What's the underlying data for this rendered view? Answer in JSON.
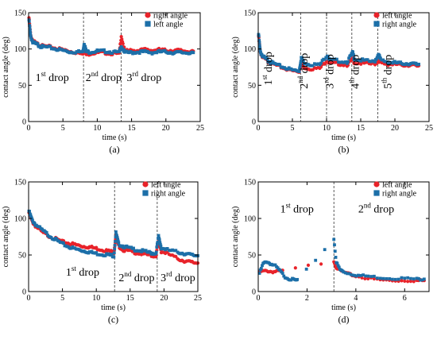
{
  "chart_data": [
    {
      "panel": "(a)",
      "type": "scatter",
      "xlabel": "time (s)",
      "ylabel": "contact angle (deg)",
      "xlim": [
        0,
        25
      ],
      "ylim": [
        0,
        150
      ],
      "xticks": [
        0,
        5,
        10,
        15,
        20,
        25
      ],
      "yticks": [
        0,
        50,
        100,
        150
      ],
      "legend_position": "top-right",
      "series": [
        {
          "name": "right angle",
          "color": "#e8232a",
          "x": [
            0.05,
            0.3,
            0.6,
            1,
            1.5,
            2,
            3,
            4,
            5,
            6,
            7,
            7.9,
            8.1,
            8.4,
            9,
            10,
            11,
            12,
            13.2,
            13.5,
            14,
            15,
            16,
            17,
            18,
            19,
            20,
            21,
            22,
            23,
            24
          ],
          "y": [
            143,
            118,
            112,
            108,
            106,
            104,
            103,
            101,
            99,
            97,
            95,
            93,
            102,
            92,
            94,
            95,
            95,
            94,
            93,
            118,
            97,
            98,
            98,
            99,
            98,
            99,
            98,
            98,
            98,
            97,
            97
          ]
        },
        {
          "name": "left angle",
          "color": "#1c6fa8",
          "x": [
            0.05,
            0.3,
            0.6,
            1,
            1.5,
            2,
            3,
            4,
            5,
            6,
            7,
            7.9,
            8.1,
            8.4,
            9,
            10,
            11,
            12,
            13.2,
            13.5,
            14,
            15,
            16,
            17,
            18,
            19,
            20,
            21,
            22,
            23,
            24
          ],
          "y": [
            140,
            117,
            110,
            107,
            105,
            103,
            102,
            100,
            98,
            96,
            96,
            96,
            108,
            96,
            96,
            97,
            97,
            96,
            95,
            104,
            95,
            95,
            96,
            96,
            95,
            96,
            96,
            95,
            95,
            95,
            95
          ]
        }
      ],
      "dividers": [
        8,
        13.5
      ],
      "annotations": [
        {
          "base": "1",
          "sup": "st",
          "rest": " drop",
          "x": 1,
          "y": 56
        },
        {
          "base": "2",
          "sup": "nd",
          "rest": " drop",
          "x": 8.3,
          "y": 56
        },
        {
          "base": "3",
          "sup": "rd",
          "rest": " drop",
          "x": 14.3,
          "y": 56
        }
      ],
      "label": "(a)"
    },
    {
      "panel": "(b)",
      "type": "scatter",
      "xlabel": "time (s)",
      "ylabel": "contact angle (deg)",
      "xlim": [
        0,
        25
      ],
      "ylim": [
        0,
        150
      ],
      "xticks": [
        0,
        5,
        10,
        15,
        20,
        25
      ],
      "yticks": [
        0,
        50,
        100,
        150
      ],
      "legend_position": "top-right",
      "series": [
        {
          "name": "left angle",
          "color": "#e8232a",
          "x": [
            0.05,
            0.3,
            0.6,
            1,
            1.5,
            2,
            3,
            4,
            5,
            6,
            6.3,
            6.6,
            7.5,
            9,
            10.1,
            10.4,
            11.5,
            13,
            13.8,
            14.1,
            15.5,
            17,
            17.6,
            17.9,
            19,
            20,
            21,
            22,
            23,
            23.5
          ],
          "y": [
            118,
            95,
            90,
            86,
            83,
            80,
            76,
            73,
            70,
            69,
            80,
            75,
            73,
            73,
            85,
            80,
            80,
            78,
            86,
            81,
            80,
            79,
            84,
            81,
            79,
            79,
            78,
            78,
            77,
            77
          ]
        },
        {
          "name": "right angle",
          "color": "#1c6fa8",
          "x": [
            0.05,
            0.3,
            0.6,
            1,
            1.5,
            2,
            3,
            4,
            5,
            6,
            6.3,
            6.6,
            7.5,
            9,
            10.1,
            10.4,
            11.5,
            13,
            13.8,
            14.1,
            15.5,
            17,
            17.6,
            17.9,
            19,
            20,
            21,
            22,
            23,
            23.5
          ],
          "y": [
            120,
            96,
            91,
            87,
            84,
            81,
            77,
            74,
            71,
            70,
            88,
            82,
            79,
            78,
            92,
            85,
            84,
            82,
            95,
            86,
            84,
            82,
            93,
            85,
            82,
            81,
            80,
            80,
            79,
            79
          ]
        }
      ],
      "dividers": [
        6.2,
        10,
        13.7,
        17.5
      ],
      "annotations": [
        {
          "base": "1",
          "sup": "st",
          "rest": " drop",
          "x": 2,
          "y": 50,
          "rotate": true
        },
        {
          "base": "2",
          "sup": "nd",
          "rest": " drop",
          "x": 7.2,
          "y": 45,
          "rotate": true
        },
        {
          "base": "3",
          "sup": "rd",
          "rest": " drop",
          "x": 11,
          "y": 45,
          "rotate": true
        },
        {
          "base": "4",
          "sup": "th",
          "rest": " drop",
          "x": 14.7,
          "y": 45,
          "rotate": true
        },
        {
          "base": "5",
          "sup": "th",
          "rest": " drop",
          "x": 19.5,
          "y": 45,
          "rotate": true
        }
      ],
      "label": "(b)"
    },
    {
      "panel": "(c)",
      "type": "scatter",
      "xlabel": "time (s)",
      "ylabel": "contact angle (deg)",
      "xlim": [
        0,
        25
      ],
      "ylim": [
        0,
        150
      ],
      "xticks": [
        0,
        5,
        10,
        15,
        20,
        25
      ],
      "yticks": [
        0,
        50,
        100,
        150
      ],
      "legend_position": "top-right",
      "series": [
        {
          "name": "left angle",
          "color": "#e8232a",
          "x": [
            0.05,
            0.5,
            1,
            2,
            3,
            4,
            5,
            6,
            7,
            8,
            9,
            10,
            11,
            12,
            12.6,
            12.9,
            13.3,
            14,
            15,
            16,
            17,
            18,
            18.8,
            19.2,
            19.6,
            20.5,
            22,
            23,
            24,
            25
          ],
          "y": [
            108,
            96,
            90,
            81,
            76,
            72,
            68,
            66,
            64,
            62,
            61,
            59,
            57,
            55,
            54,
            75,
            62,
            57,
            55,
            53,
            51,
            50,
            48,
            70,
            55,
            52,
            45,
            42,
            40,
            39
          ]
        },
        {
          "name": "right angle",
          "color": "#1c6fa8",
          "x": [
            0.05,
            0.5,
            1,
            2,
            3,
            4,
            5,
            6,
            7,
            8,
            9,
            10,
            11,
            12,
            12.6,
            12.9,
            13.3,
            14,
            15,
            16,
            17,
            18,
            18.8,
            19.2,
            19.6,
            20.5,
            22,
            23,
            24,
            25
          ],
          "y": [
            110,
            98,
            92,
            84,
            77,
            71,
            65,
            61,
            58,
            56,
            54,
            52,
            51,
            50,
            49,
            80,
            65,
            62,
            59,
            57,
            55,
            53,
            52,
            75,
            60,
            57,
            54,
            52,
            50,
            49
          ]
        }
      ],
      "dividers": [
        12.7,
        19
      ],
      "annotations": [
        {
          "base": "1",
          "sup": "st",
          "rest": " drop",
          "x": 5.5,
          "y": 22
        },
        {
          "base": "2",
          "sup": "nd",
          "rest": " drop",
          "x": 13.3,
          "y": 14
        },
        {
          "base": "3",
          "sup": "rd",
          "rest": " drop",
          "x": 19.5,
          "y": 14
        }
      ],
      "label": "(c)"
    },
    {
      "panel": "(d)",
      "type": "scatter",
      "xlabel": "time (s)",
      "ylabel": "contact angle (deg)",
      "xlim": [
        0,
        7
      ],
      "ylim": [
        0,
        150
      ],
      "xticks": [
        0,
        2,
        4,
        6
      ],
      "yticks": [
        0,
        50,
        100,
        150
      ],
      "legend_position": "top-right",
      "series": [
        {
          "name": "left angle",
          "color": "#e8232a",
          "x": [
            0.05,
            0.2,
            0.4,
            0.6,
            0.8,
            1.0,
            3.1,
            3.2,
            3.4,
            3.7,
            4.0,
            4.5,
            5.0,
            5.5,
            6.0,
            6.5,
            6.8
          ],
          "y": [
            27,
            28,
            28,
            27,
            28,
            28,
            42,
            33,
            28,
            24,
            21,
            18,
            16,
            15,
            15,
            15,
            15
          ]
        },
        {
          "name": "right angle",
          "color": "#1c6fa8",
          "x": [
            0.05,
            0.2,
            0.35,
            0.5,
            0.7,
            0.9,
            1.1,
            1.3,
            1.5,
            1.6,
            3.1,
            3.2,
            3.35,
            3.5,
            3.8,
            4.1,
            4.5,
            5.0,
            5.5,
            6.0,
            6.5,
            6.8
          ],
          "y": [
            25,
            38,
            41,
            38,
            35,
            28,
            20,
            17,
            16,
            15,
            72,
            40,
            30,
            27,
            24,
            22,
            21,
            19,
            18,
            18,
            17,
            17
          ]
        }
      ],
      "dividers": [
        3.1
      ],
      "annotations": [
        {
          "base": "1",
          "sup": "st",
          "rest": " drop",
          "x": 0.9,
          "y": 108
        },
        {
          "base": "2",
          "sup": "nd",
          "rest": " drop",
          "x": 4.1,
          "y": 108
        }
      ],
      "label": "(d)"
    }
  ]
}
